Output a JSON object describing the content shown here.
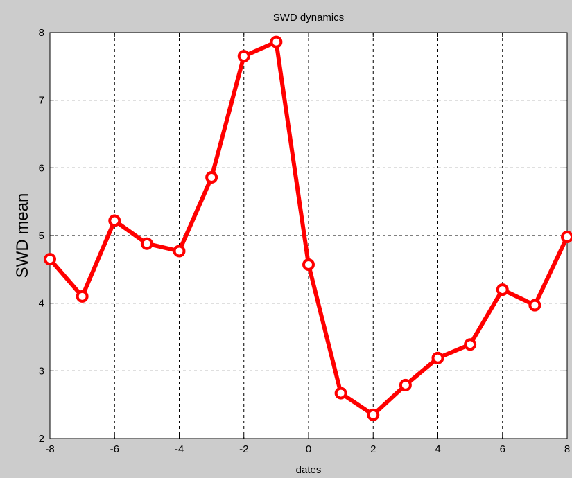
{
  "chart_data": {
    "type": "line",
    "title": "SWD dynamics",
    "xlabel": "dates",
    "ylabel": "SWD mean",
    "xlim": [
      -8,
      8
    ],
    "ylim": [
      2,
      8
    ],
    "xticks": [
      -8,
      -6,
      -4,
      -2,
      0,
      2,
      4,
      6,
      8
    ],
    "yticks": [
      2,
      3,
      4,
      5,
      6,
      7,
      8
    ],
    "grid": true,
    "series": [
      {
        "color": "#ff0000",
        "marker": "circle",
        "x": [
          -8,
          -7,
          -6,
          -5,
          -4,
          -3,
          -2,
          -1,
          0,
          1,
          2,
          3,
          4,
          5,
          6,
          7,
          8
        ],
        "y": [
          4.65,
          4.1,
          5.22,
          4.88,
          4.77,
          5.86,
          7.65,
          7.86,
          4.57,
          2.67,
          2.35,
          2.79,
          3.19,
          3.39,
          4.2,
          3.97,
          4.98
        ]
      }
    ]
  }
}
